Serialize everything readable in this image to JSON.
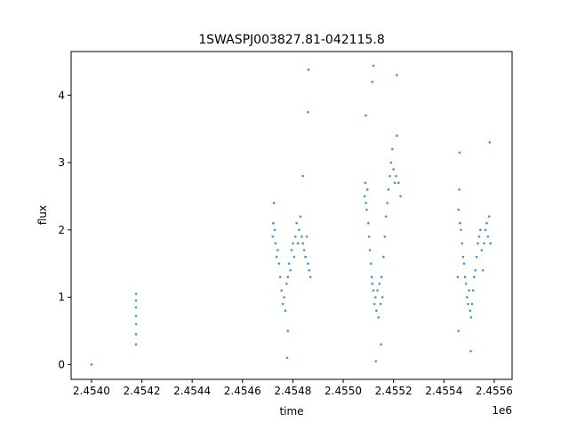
{
  "chart_data": {
    "type": "scatter",
    "title": "1SWASPJ003827.81-042115.8",
    "xlabel": "time",
    "ylabel": "flux",
    "x_offset_label": "1e6",
    "xlim": [
      2453919,
      2455671
    ],
    "ylim": [
      -0.22,
      4.65
    ],
    "x_ticks": [
      2454000,
      2454200,
      2454400,
      2454600,
      2454800,
      2455000,
      2455200,
      2455400,
      2455600
    ],
    "x_tick_labels": [
      "2.4540",
      "2.4542",
      "2.4544",
      "2.4546",
      "2.4548",
      "2.4550",
      "2.4552",
      "2.4554",
      "2.4556"
    ],
    "y_ticks": [
      0,
      1,
      2,
      3,
      4
    ],
    "y_tick_labels": [
      "0",
      "1",
      "2",
      "3",
      "4"
    ],
    "grid": false,
    "color": "#1f77b4",
    "points": [
      [
        2454000,
        0.0
      ],
      [
        2454177,
        0.3
      ],
      [
        2454177,
        0.45
      ],
      [
        2454177,
        0.6
      ],
      [
        2454177,
        0.72
      ],
      [
        2454177,
        0.85
      ],
      [
        2454177,
        0.95
      ],
      [
        2454177,
        1.05
      ],
      [
        2454720,
        1.9
      ],
      [
        2454722,
        2.1
      ],
      [
        2454725,
        2.4
      ],
      [
        2454728,
        2.0
      ],
      [
        2454731,
        1.8
      ],
      [
        2454735,
        1.6
      ],
      [
        2454740,
        1.7
      ],
      [
        2454745,
        1.5
      ],
      [
        2454750,
        1.3
      ],
      [
        2454755,
        1.1
      ],
      [
        2454760,
        0.9
      ],
      [
        2454765,
        1.0
      ],
      [
        2454770,
        0.8
      ],
      [
        2454775,
        1.2
      ],
      [
        2454780,
        1.3
      ],
      [
        2454785,
        1.5
      ],
      [
        2454790,
        1.4
      ],
      [
        2454795,
        1.7
      ],
      [
        2454800,
        1.8
      ],
      [
        2454805,
        1.6
      ],
      [
        2454810,
        1.9
      ],
      [
        2454815,
        2.1
      ],
      [
        2454820,
        1.8
      ],
      [
        2454825,
        2.0
      ],
      [
        2454830,
        2.2
      ],
      [
        2454835,
        1.9
      ],
      [
        2454840,
        1.8
      ],
      [
        2454845,
        1.7
      ],
      [
        2454850,
        1.6
      ],
      [
        2454855,
        1.9
      ],
      [
        2454860,
        1.5
      ],
      [
        2454865,
        1.4
      ],
      [
        2454870,
        1.3
      ],
      [
        2454780,
        0.5
      ],
      [
        2454777,
        0.1
      ],
      [
        2454862,
        4.38
      ],
      [
        2454860,
        3.75
      ],
      [
        2454840,
        2.8
      ],
      [
        2455085,
        2.5
      ],
      [
        2455088,
        2.7
      ],
      [
        2455090,
        2.4
      ],
      [
        2455093,
        2.3
      ],
      [
        2455096,
        2.6
      ],
      [
        2455100,
        2.1
      ],
      [
        2455103,
        1.9
      ],
      [
        2455106,
        1.7
      ],
      [
        2455110,
        1.5
      ],
      [
        2455113,
        1.3
      ],
      [
        2455116,
        1.2
      ],
      [
        2455120,
        1.1
      ],
      [
        2455124,
        0.9
      ],
      [
        2455128,
        1.0
      ],
      [
        2455132,
        0.8
      ],
      [
        2455136,
        1.1
      ],
      [
        2455140,
        0.7
      ],
      [
        2455144,
        1.2
      ],
      [
        2455148,
        0.9
      ],
      [
        2455152,
        1.3
      ],
      [
        2455156,
        1.0
      ],
      [
        2455160,
        1.6
      ],
      [
        2455165,
        1.9
      ],
      [
        2455170,
        2.2
      ],
      [
        2455175,
        2.4
      ],
      [
        2455180,
        2.6
      ],
      [
        2455185,
        2.8
      ],
      [
        2455190,
        3.0
      ],
      [
        2455195,
        3.2
      ],
      [
        2455200,
        2.9
      ],
      [
        2455205,
        2.7
      ],
      [
        2455210,
        2.8
      ],
      [
        2455213,
        3.4
      ],
      [
        2455220,
        2.7
      ],
      [
        2455228,
        2.5
      ],
      [
        2455120,
        4.44
      ],
      [
        2455115,
        4.2
      ],
      [
        2455130,
        0.05
      ],
      [
        2455090,
        3.7
      ],
      [
        2455213,
        4.3
      ],
      [
        2455150,
        0.3
      ],
      [
        2455455,
        1.3
      ],
      [
        2455458,
        2.3
      ],
      [
        2455461,
        2.6
      ],
      [
        2455464,
        2.1
      ],
      [
        2455468,
        2.0
      ],
      [
        2455472,
        1.8
      ],
      [
        2455476,
        1.6
      ],
      [
        2455480,
        1.5
      ],
      [
        2455484,
        1.3
      ],
      [
        2455488,
        1.2
      ],
      [
        2455492,
        1.0
      ],
      [
        2455496,
        0.9
      ],
      [
        2455500,
        1.1
      ],
      [
        2455504,
        0.8
      ],
      [
        2455508,
        0.7
      ],
      [
        2455512,
        0.9
      ],
      [
        2455516,
        1.1
      ],
      [
        2455520,
        1.3
      ],
      [
        2455525,
        1.4
      ],
      [
        2455530,
        1.6
      ],
      [
        2455535,
        1.8
      ],
      [
        2455540,
        1.9
      ],
      [
        2455545,
        2.0
      ],
      [
        2455550,
        1.7
      ],
      [
        2455555,
        1.4
      ],
      [
        2455560,
        1.8
      ],
      [
        2455565,
        2.0
      ],
      [
        2455570,
        2.1
      ],
      [
        2455575,
        1.9
      ],
      [
        2455580,
        2.2
      ],
      [
        2455585,
        1.8
      ],
      [
        2455462,
        3.15
      ],
      [
        2455582,
        3.3
      ],
      [
        2455507,
        0.2
      ],
      [
        2455458,
        0.5
      ]
    ]
  }
}
